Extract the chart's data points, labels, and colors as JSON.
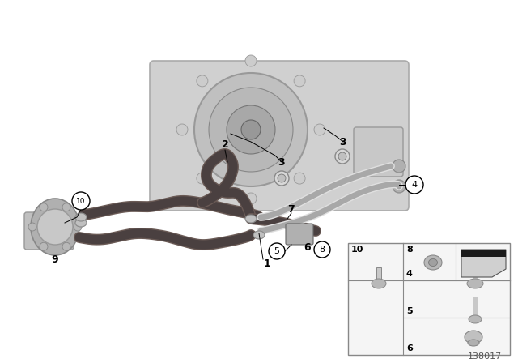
{
  "bg_color": "#ffffff",
  "diagram_num": "138017",
  "transmission_color": "#c8c8c8",
  "transmission_edge": "#aaaaaa",
  "cooler_color": "#b8b8b8",
  "hose_dark": "#4a4040",
  "hose_dark2": "#6a5a55",
  "pipe_light": "#c0c0c0",
  "pipe_light2": "#e0e0e0",
  "label_font": 8.5,
  "bold_font": 9
}
